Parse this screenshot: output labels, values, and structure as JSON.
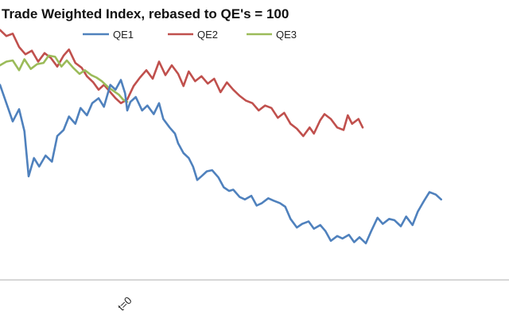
{
  "chart_data": {
    "type": "line",
    "title": "Trade Weighted Index, rebased to QE's = 100",
    "xlabel": "",
    "ylabel": "",
    "x_tick_labels": [
      {
        "x": 0,
        "label": "t=0"
      }
    ],
    "xlim": [
      -120,
      360
    ],
    "ylim": [
      85,
      106
    ],
    "grid": false,
    "legend": "top",
    "series": [
      {
        "name": "QE1",
        "color": "#4f81bd",
        "points": [
          [
            -120,
            101
          ],
          [
            -114,
            99.5
          ],
          [
            -108,
            98
          ],
          [
            -102,
            99
          ],
          [
            -97,
            97.2
          ],
          [
            -93,
            93.5
          ],
          [
            -88,
            95
          ],
          [
            -83,
            94.3
          ],
          [
            -77,
            95.2
          ],
          [
            -71,
            94.7
          ],
          [
            -66,
            96.8
          ],
          [
            -60,
            97.3
          ],
          [
            -55,
            98.4
          ],
          [
            -49,
            97.8
          ],
          [
            -44,
            99.1
          ],
          [
            -38,
            98.5
          ],
          [
            -33,
            99.5
          ],
          [
            -27,
            99.9
          ],
          [
            -22,
            99.2
          ],
          [
            -16,
            101
          ],
          [
            -11,
            100.6
          ],
          [
            -6,
            101.4
          ],
          [
            -2,
            100.3
          ],
          [
            0,
            98.9
          ],
          [
            3,
            99.6
          ],
          [
            8,
            100
          ],
          [
            14,
            98.9
          ],
          [
            19,
            99.3
          ],
          [
            25,
            98.6
          ],
          [
            30,
            99.5
          ],
          [
            34,
            98.2
          ],
          [
            40,
            97.5
          ],
          [
            45,
            97
          ],
          [
            48,
            96.2
          ],
          [
            53,
            95.4
          ],
          [
            58,
            95
          ],
          [
            62,
            94.3
          ],
          [
            66,
            93.2
          ],
          [
            70,
            93.5
          ],
          [
            75,
            93.9
          ],
          [
            80,
            94
          ],
          [
            86,
            93.4
          ],
          [
            91,
            92.6
          ],
          [
            96,
            92.3
          ],
          [
            100,
            92.4
          ],
          [
            106,
            91.8
          ],
          [
            111,
            91.6
          ],
          [
            117,
            91.9
          ],
          [
            122,
            91.1
          ],
          [
            127,
            91.3
          ],
          [
            133,
            91.7
          ],
          [
            138,
            91.5
          ],
          [
            144,
            91.3
          ],
          [
            149,
            91
          ],
          [
            154,
            90
          ],
          [
            160,
            89.3
          ],
          [
            165,
            89.6
          ],
          [
            171,
            89.8
          ],
          [
            176,
            89.2
          ],
          [
            182,
            89.5
          ],
          [
            187,
            89
          ],
          [
            192,
            88.2
          ],
          [
            198,
            88.6
          ],
          [
            203,
            88.4
          ],
          [
            209,
            88.7
          ],
          [
            214,
            88.1
          ],
          [
            219,
            88.5
          ],
          [
            225,
            88
          ],
          [
            230,
            89
          ],
          [
            236,
            90.1
          ],
          [
            241,
            89.6
          ],
          [
            247,
            90
          ],
          [
            252,
            89.9
          ],
          [
            258,
            89.4
          ],
          [
            263,
            90.2
          ],
          [
            269,
            89.5
          ],
          [
            274,
            90.6
          ],
          [
            280,
            91.5
          ],
          [
            285,
            92.2
          ],
          [
            291,
            92
          ],
          [
            296,
            91.6
          ]
        ]
      },
      {
        "name": "QE2",
        "color": "#c0504d",
        "points": [
          [
            -120,
            105.5
          ],
          [
            -114,
            105
          ],
          [
            -108,
            105.2
          ],
          [
            -102,
            104.1
          ],
          [
            -96,
            103.5
          ],
          [
            -90,
            103.8
          ],
          [
            -84,
            102.9
          ],
          [
            -78,
            103.6
          ],
          [
            -72,
            103.2
          ],
          [
            -66,
            102.5
          ],
          [
            -60,
            103.4
          ],
          [
            -55,
            103.9
          ],
          [
            -49,
            102.8
          ],
          [
            -43,
            102.4
          ],
          [
            -38,
            101.7
          ],
          [
            -32,
            101.2
          ],
          [
            -27,
            100.6
          ],
          [
            -22,
            101
          ],
          [
            -16,
            100.4
          ],
          [
            -11,
            99.9
          ],
          [
            -6,
            99.5
          ],
          [
            0,
            99.8
          ],
          [
            6,
            100.9
          ],
          [
            12,
            101.6
          ],
          [
            18,
            102.2
          ],
          [
            24,
            101.5
          ],
          [
            30,
            102.9
          ],
          [
            36,
            101.8
          ],
          [
            42,
            102.6
          ],
          [
            48,
            101.9
          ],
          [
            53,
            100.9
          ],
          [
            58,
            102.1
          ],
          [
            64,
            101.3
          ],
          [
            70,
            101.7
          ],
          [
            76,
            101.1
          ],
          [
            82,
            101.5
          ],
          [
            88,
            100.4
          ],
          [
            94,
            101.2
          ],
          [
            100,
            100.6
          ],
          [
            106,
            100.1
          ],
          [
            112,
            99.7
          ],
          [
            118,
            99.5
          ],
          [
            124,
            98.9
          ],
          [
            130,
            99.3
          ],
          [
            136,
            99.1
          ],
          [
            142,
            98.3
          ],
          [
            148,
            98.7
          ],
          [
            154,
            97.8
          ],
          [
            160,
            97.4
          ],
          [
            166,
            96.8
          ],
          [
            172,
            97.5
          ],
          [
            176,
            97
          ],
          [
            182,
            98.1
          ],
          [
            186,
            98.6
          ],
          [
            192,
            98.2
          ],
          [
            198,
            97.5
          ],
          [
            204,
            97.3
          ],
          [
            208,
            98.5
          ],
          [
            212,
            97.8
          ],
          [
            218,
            98.2
          ],
          [
            222,
            97.5
          ]
        ]
      },
      {
        "name": "QE3",
        "color": "#9bbb59",
        "points": [
          [
            -120,
            102.6
          ],
          [
            -114,
            102.9
          ],
          [
            -108,
            103
          ],
          [
            -102,
            102.2
          ],
          [
            -97,
            103.1
          ],
          [
            -91,
            102.3
          ],
          [
            -85,
            102.7
          ],
          [
            -79,
            102.8
          ],
          [
            -74,
            103.4
          ],
          [
            -68,
            103.3
          ],
          [
            -62,
            102.5
          ],
          [
            -57,
            103
          ],
          [
            -51,
            102.4
          ],
          [
            -45,
            101.9
          ],
          [
            -40,
            102.2
          ],
          [
            -34,
            101.8
          ],
          [
            -29,
            101.6
          ],
          [
            -24,
            101.3
          ],
          [
            -18,
            100.8
          ],
          [
            -13,
            100.5
          ],
          [
            -8,
            100.2
          ],
          [
            -4,
            99.8
          ],
          [
            0,
            99.6
          ]
        ]
      }
    ]
  }
}
